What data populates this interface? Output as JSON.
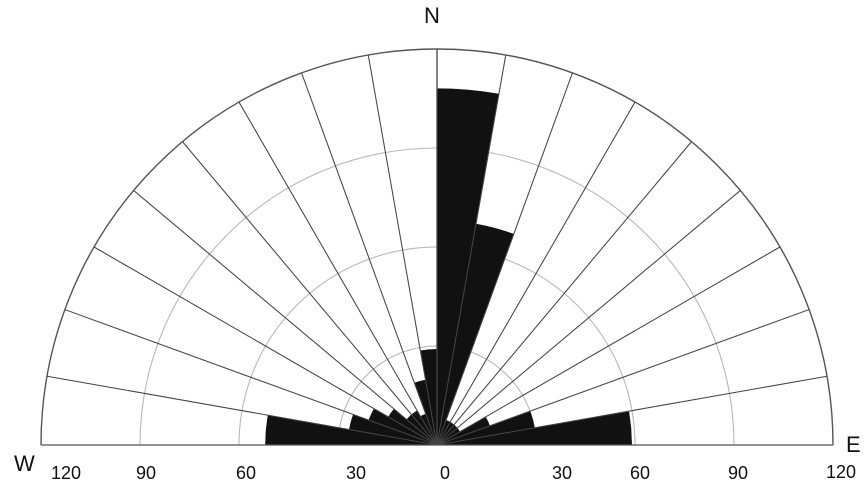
{
  "chart_data": {
    "type": "rose",
    "title": "",
    "direction_labels": {
      "north": "N",
      "west": "W",
      "east": "E"
    },
    "radial_ticks": [
      0,
      30,
      60,
      90,
      120
    ],
    "radial_tick_labels_left": [
      "120",
      "90",
      "60",
      "30"
    ],
    "radial_tick_labels_right": [
      "0",
      "30",
      "60",
      "90",
      "120"
    ],
    "rmax": 120,
    "sector_width_deg": 10,
    "angle_range_deg": [
      -90,
      90
    ],
    "bins": [
      {
        "from": -90,
        "to": -80,
        "value": 52
      },
      {
        "from": -80,
        "to": -70,
        "value": 27
      },
      {
        "from": -70,
        "to": -60,
        "value": 22
      },
      {
        "from": -60,
        "to": -50,
        "value": 17
      },
      {
        "from": -50,
        "to": -40,
        "value": 12
      },
      {
        "from": -40,
        "to": -30,
        "value": 12
      },
      {
        "from": -30,
        "to": -20,
        "value": 10
      },
      {
        "from": -20,
        "to": -10,
        "value": 20
      },
      {
        "from": -10,
        "to": 0,
        "value": 29
      },
      {
        "from": 0,
        "to": 10,
        "value": 108
      },
      {
        "from": 10,
        "to": 20,
        "value": 68
      },
      {
        "from": 20,
        "to": 30,
        "value": 8
      },
      {
        "from": 30,
        "to": 40,
        "value": 8
      },
      {
        "from": 40,
        "to": 50,
        "value": 8
      },
      {
        "from": 50,
        "to": 60,
        "value": 8
      },
      {
        "from": 60,
        "to": 70,
        "value": 17
      },
      {
        "from": 70,
        "to": 80,
        "value": 30
      },
      {
        "from": 80,
        "to": 90,
        "value": 59
      }
    ],
    "colors": {
      "fill": "#111111",
      "grid_major": "#b8b8b8",
      "grid_radial": "#444444",
      "outer": "#555555"
    }
  }
}
